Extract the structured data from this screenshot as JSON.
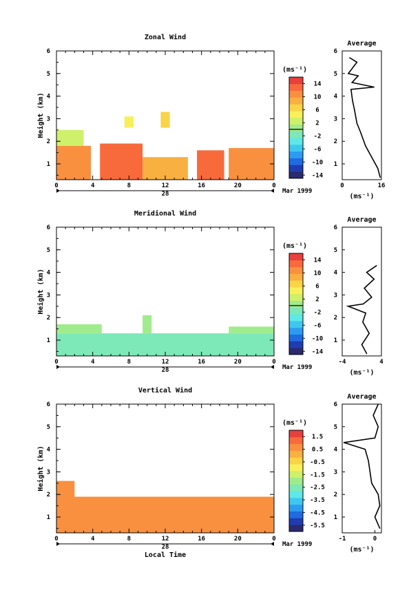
{
  "chart_data": [
    {
      "type": "heatmap",
      "title": "Zonal Wind",
      "ylabel": "Height (km)",
      "xlim": [
        0,
        24
      ],
      "ylim": [
        0.3,
        6
      ],
      "x_ticks": [
        "0",
        "4",
        "8",
        "12",
        "16",
        "20",
        "0"
      ],
      "y_ticks": [
        "1",
        "2",
        "3",
        "4",
        "5",
        "6"
      ],
      "day_label": "28",
      "month_label": "Mar 1999",
      "colorbar": {
        "unit": "(ms⁻¹)",
        "range": [
          -15,
          16
        ],
        "ticks": [
          "14",
          "10",
          "6",
          "2",
          "-2",
          "-6",
          "-10",
          "-14"
        ],
        "zero_line": 0
      },
      "field": [
        {
          "t": [
            0,
            3.8
          ],
          "h": [
            0.3,
            1.8
          ],
          "v": 10
        },
        {
          "t": [
            4.8,
            9.5
          ],
          "h": [
            0.3,
            1.9
          ],
          "v": 12
        },
        {
          "t": [
            9.5,
            14.5
          ],
          "h": [
            0.3,
            1.3
          ],
          "v": 9
        },
        {
          "t": [
            15.5,
            18.5
          ],
          "h": [
            0.3,
            1.6
          ],
          "v": 13
        },
        {
          "t": [
            19,
            24
          ],
          "h": [
            0.3,
            1.7
          ],
          "v": 11
        },
        {
          "t": [
            0,
            3
          ],
          "h": [
            1.8,
            2.5
          ],
          "v": 3
        },
        {
          "t": [
            7.5,
            8.5
          ],
          "h": [
            2.6,
            3.1
          ],
          "v": 4
        },
        {
          "t": [
            11.5,
            12.5
          ],
          "h": [
            2.6,
            3.3
          ],
          "v": 6
        }
      ],
      "average_profile": {
        "title": "Average",
        "xlabel": "(ms⁻¹)",
        "xlim": [
          0,
          16
        ],
        "x_ticks": [
          "0",
          "16"
        ],
        "points": [
          {
            "x": 15.5,
            "y": 0.4
          },
          {
            "x": 14.5,
            "y": 0.8
          },
          {
            "x": 12.0,
            "y": 1.3
          },
          {
            "x": 9.5,
            "y": 1.8
          },
          {
            "x": 7.5,
            "y": 2.4
          },
          {
            "x": 6.0,
            "y": 2.8
          },
          {
            "x": 5.0,
            "y": 3.4
          },
          {
            "x": 4.2,
            "y": 3.8
          },
          {
            "x": 3.6,
            "y": 4.3
          },
          {
            "x": 13.0,
            "y": 4.4
          },
          {
            "x": 4.0,
            "y": 4.6
          },
          {
            "x": 6.5,
            "y": 4.9
          },
          {
            "x": 2.5,
            "y": 5.0
          },
          {
            "x": 6.0,
            "y": 5.5
          },
          {
            "x": 3.0,
            "y": 5.7
          }
        ]
      }
    },
    {
      "type": "heatmap",
      "title": "Meridional Wind",
      "ylabel": "Height (km)",
      "xlim": [
        0,
        24
      ],
      "ylim": [
        0.3,
        6
      ],
      "x_ticks": [
        "0",
        "4",
        "8",
        "12",
        "16",
        "20",
        "0"
      ],
      "y_ticks": [
        "1",
        "2",
        "3",
        "4",
        "5",
        "6"
      ],
      "day_label": "28",
      "month_label": "Mar 1999",
      "colorbar": {
        "unit": "(ms⁻¹)",
        "range": [
          -15,
          16
        ],
        "ticks": [
          "14",
          "10",
          "6",
          "2",
          "-2",
          "-6",
          "-10",
          "-14"
        ],
        "zero_line": 0
      },
      "field": [
        {
          "t": [
            0,
            24
          ],
          "h": [
            0.3,
            1.3
          ],
          "v": -1
        },
        {
          "t": [
            0,
            5
          ],
          "h": [
            1.3,
            1.7
          ],
          "v": 1
        },
        {
          "t": [
            9.5,
            10.5
          ],
          "h": [
            1.3,
            2.1
          ],
          "v": 1
        },
        {
          "t": [
            19,
            24
          ],
          "h": [
            1.3,
            1.6
          ],
          "v": 1
        }
      ],
      "average_profile": {
        "title": "Average",
        "xlabel": "(ms⁻¹)",
        "xlim": [
          -4,
          4
        ],
        "x_ticks": [
          "-4",
          "4"
        ],
        "points": [
          {
            "x": 1.0,
            "y": 0.4
          },
          {
            "x": 0.0,
            "y": 0.8
          },
          {
            "x": 1.5,
            "y": 1.3
          },
          {
            "x": 0.2,
            "y": 1.8
          },
          {
            "x": 0.8,
            "y": 2.2
          },
          {
            "x": -2.8,
            "y": 2.5
          },
          {
            "x": 0.3,
            "y": 2.6
          },
          {
            "x": 2.0,
            "y": 2.9
          },
          {
            "x": 0.5,
            "y": 3.3
          },
          {
            "x": 2.5,
            "y": 3.7
          },
          {
            "x": 1.0,
            "y": 4.0
          },
          {
            "x": 3.0,
            "y": 4.3
          }
        ]
      }
    },
    {
      "type": "heatmap",
      "title": "Vertical Wind",
      "ylabel": "Height (km)",
      "xlabel": "Local Time",
      "xlim": [
        0,
        24
      ],
      "ylim": [
        0.3,
        6
      ],
      "x_ticks": [
        "0",
        "4",
        "8",
        "12",
        "16",
        "20",
        "0"
      ],
      "y_ticks": [
        "1",
        "2",
        "3",
        "4",
        "5",
        "6"
      ],
      "day_label": "28",
      "month_label": "Mar 1999",
      "colorbar": {
        "unit": "(ms⁻¹)",
        "range": [
          -6,
          2
        ],
        "ticks": [
          "1.5",
          "0.5",
          "-0.5",
          "-1.5",
          "-2.5",
          "-3.5",
          "-4.5",
          "-5.5"
        ],
        "zero_line": null
      },
      "field": [
        {
          "t": [
            0,
            24
          ],
          "h": [
            0.3,
            1.9
          ],
          "v": 0.8
        },
        {
          "t": [
            0,
            2
          ],
          "h": [
            1.9,
            2.6
          ],
          "v": 0.8
        }
      ],
      "average_profile": {
        "title": "Average",
        "xlabel": "(ms⁻¹)",
        "xlim": [
          -1,
          0.2
        ],
        "x_ticks": [
          "-1",
          "0"
        ],
        "points": [
          {
            "x": 0.15,
            "y": 0.5
          },
          {
            "x": 0.0,
            "y": 1.0
          },
          {
            "x": 0.15,
            "y": 1.5
          },
          {
            "x": 0.1,
            "y": 2.0
          },
          {
            "x": -0.1,
            "y": 2.5
          },
          {
            "x": -0.15,
            "y": 3.0
          },
          {
            "x": -0.2,
            "y": 3.5
          },
          {
            "x": -0.3,
            "y": 4.0
          },
          {
            "x": -0.95,
            "y": 4.3
          },
          {
            "x": 0.0,
            "y": 4.5
          },
          {
            "x": 0.1,
            "y": 5.0
          },
          {
            "x": -0.05,
            "y": 5.5
          },
          {
            "x": 0.1,
            "y": 6.0
          }
        ]
      }
    }
  ]
}
